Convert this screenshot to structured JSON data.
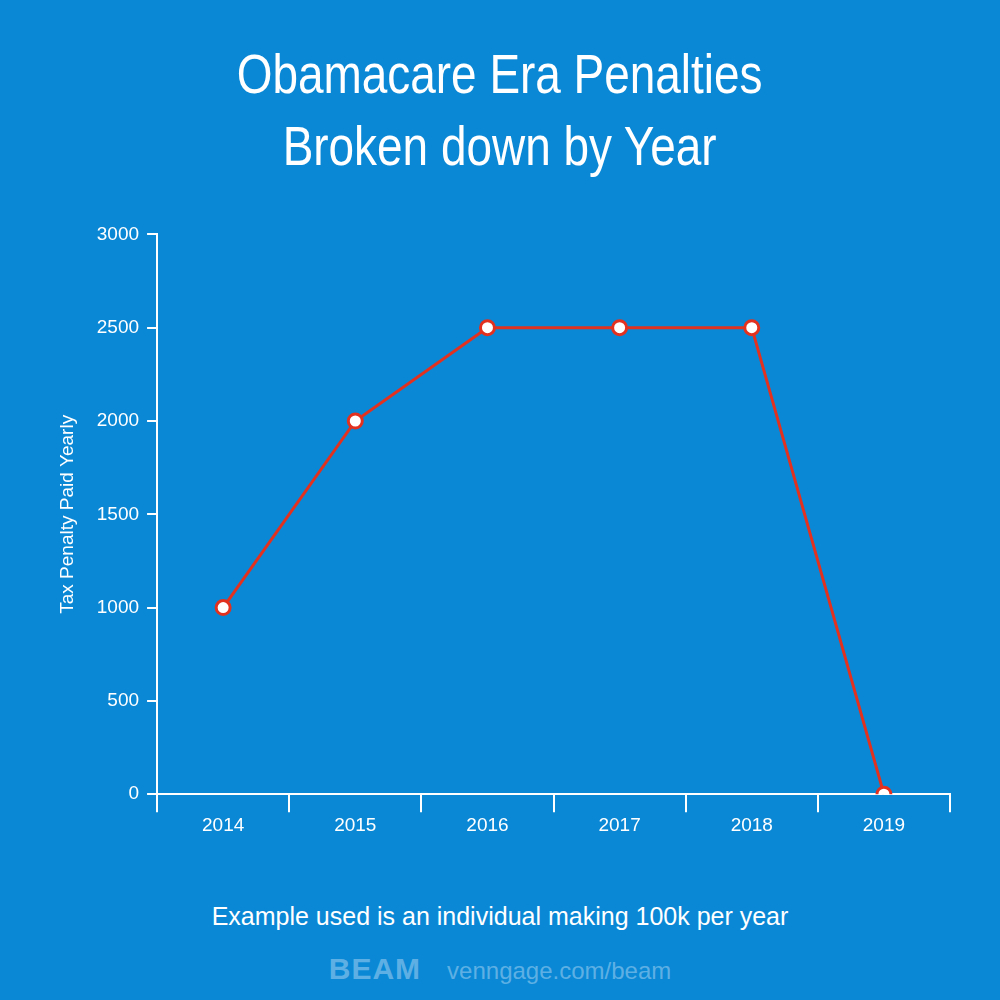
{
  "chart_data": {
    "type": "line",
    "title": [
      "Obamacare Era Penalties",
      "Broken down by Year"
    ],
    "y_label": "Tax Penalty Paid Yearly",
    "categories": [
      "2014",
      "2015",
      "2016",
      "2017",
      "2018",
      "2019"
    ],
    "values": [
      1000,
      2000,
      2500,
      2500,
      2500,
      0
    ],
    "color": "#e2321f",
    "marker": "circle",
    "line_style": "solid",
    "ylim": [
      0,
      3000
    ],
    "yticks": [
      0,
      500,
      1000,
      1500,
      2000,
      2500,
      3000
    ],
    "grid": false,
    "annotations": [
      "Example used is an individual making 100k per year",
      "BEAM",
      "venngage.com/beam"
    ]
  }
}
